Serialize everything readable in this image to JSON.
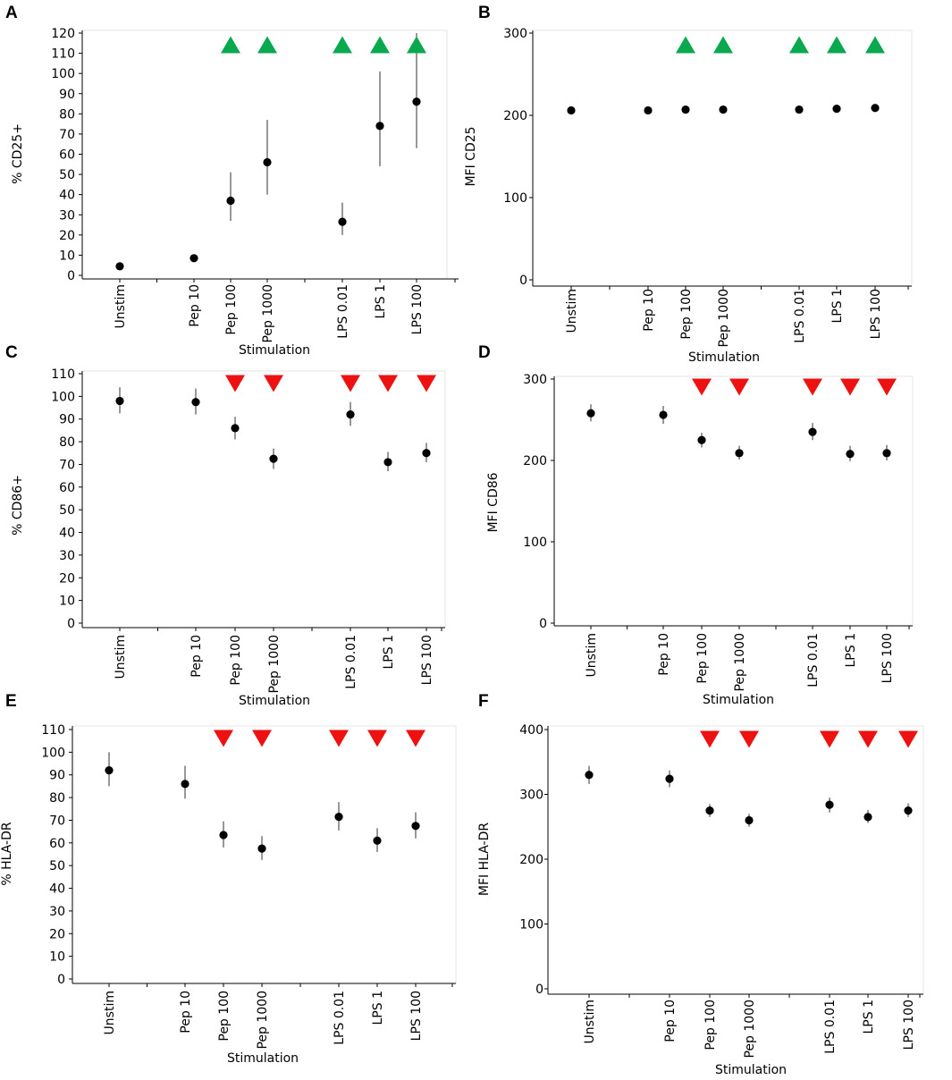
{
  "chart_data": [
    {
      "panel": "A",
      "type": "scatter",
      "categories": [
        "Unstim",
        "Pep 10",
        "Pep 100",
        "Pep 1000",
        "LPS 0.01",
        "LPS 1",
        "LPS 100"
      ],
      "values": [
        4.5,
        8.5,
        37,
        56,
        26.5,
        74,
        86
      ],
      "error_low": [
        4.5,
        7,
        27,
        40,
        20,
        54,
        63
      ],
      "error_high": [
        4.5,
        10,
        51,
        77,
        36,
        101,
        120
      ],
      "markers": [
        null,
        null,
        "up",
        "up",
        "up",
        "up",
        "up"
      ],
      "marker_colors": {
        "up": "#0aa84f",
        "down": "#ee1111"
      },
      "ylim": [
        0,
        120
      ],
      "yticks": [
        0,
        10,
        20,
        30,
        40,
        50,
        60,
        70,
        80,
        90,
        100,
        110,
        120
      ],
      "xlabel": "Stimulation",
      "ylabel": "% CD25+"
    },
    {
      "panel": "B",
      "type": "scatter",
      "categories": [
        "Unstim",
        "Pep 10",
        "Pep 100",
        "Pep 1000",
        "LPS 0.01",
        "LPS 1",
        "LPS 100"
      ],
      "values": [
        206,
        206,
        207,
        207,
        207,
        208,
        209
      ],
      "error_low": [
        206,
        206,
        207,
        207,
        207,
        208,
        209
      ],
      "error_high": [
        206,
        206,
        207,
        207,
        207,
        208,
        209
      ],
      "markers": [
        null,
        null,
        "up",
        "up",
        "up",
        "up",
        "up"
      ],
      "ylim": [
        0,
        300
      ],
      "yticks": [
        0,
        100,
        200,
        300
      ],
      "xlabel": "Stimulation",
      "ylabel": "MFI CD25"
    },
    {
      "panel": "C",
      "type": "scatter",
      "categories": [
        "Unstim",
        "Pep 10",
        "Pep 100",
        "Pep 1000",
        "LPS 0.01",
        "LPS 1",
        "LPS 100"
      ],
      "values": [
        98,
        97.5,
        86,
        72.5,
        92,
        71,
        75
      ],
      "error_low": [
        92.5,
        92,
        81,
        68,
        87,
        67,
        71
      ],
      "error_high": [
        104,
        103.5,
        91,
        77,
        97.5,
        75.5,
        79.5
      ],
      "markers": [
        null,
        null,
        "down",
        "down",
        "down",
        "down",
        "down"
      ],
      "ylim": [
        0,
        110
      ],
      "yticks": [
        0,
        10,
        20,
        30,
        40,
        50,
        60,
        70,
        80,
        90,
        100,
        110
      ],
      "xlabel": "Stimulation",
      "ylabel": "% CD86+"
    },
    {
      "panel": "D",
      "type": "scatter",
      "categories": [
        "Unstim",
        "Pep 10",
        "Pep 100",
        "Pep 1000",
        "LPS 0.01",
        "LPS 1",
        "LPS 100"
      ],
      "values": [
        258,
        256,
        225,
        209,
        235,
        208,
        209
      ],
      "error_low": [
        248,
        245,
        216,
        201,
        225,
        199,
        200
      ],
      "error_high": [
        269,
        267,
        234,
        218,
        246,
        218,
        219
      ],
      "markers": [
        null,
        null,
        "down",
        "down",
        "down",
        "down",
        "down"
      ],
      "ylim": [
        0,
        300
      ],
      "yticks": [
        0,
        100,
        200,
        300
      ],
      "xlabel": "Stimulation",
      "ylabel": "MFI CD86"
    },
    {
      "panel": "E",
      "type": "scatter",
      "categories": [
        "Unstim",
        "Pep 10",
        "Pep 100",
        "Pep 1000",
        "LPS 0.01",
        "LPS 1",
        "LPS 100"
      ],
      "values": [
        92,
        86,
        63.5,
        57.5,
        71.5,
        61,
        67.5
      ],
      "error_low": [
        85,
        79.5,
        58,
        52.5,
        65.5,
        56,
        62
      ],
      "error_high": [
        100,
        94,
        69.5,
        63,
        78,
        66.5,
        73.5
      ],
      "markers": [
        null,
        null,
        "down",
        "down",
        "down",
        "down",
        "down"
      ],
      "ylim": [
        0,
        110
      ],
      "yticks": [
        0,
        10,
        20,
        30,
        40,
        50,
        60,
        70,
        80,
        90,
        100,
        110
      ],
      "xlabel": "Stimulation",
      "ylabel": "% HLA-DR"
    },
    {
      "panel": "F",
      "type": "scatter",
      "categories": [
        "Unstim",
        "Pep 10",
        "Pep 100",
        "Pep 1000",
        "LPS 0.01",
        "LPS 1",
        "LPS 100"
      ],
      "values": [
        330,
        324,
        275,
        260,
        284,
        265,
        275
      ],
      "error_low": [
        316,
        311,
        265,
        250,
        272,
        256,
        265
      ],
      "error_high": [
        344,
        337,
        285,
        270,
        295,
        276,
        286
      ],
      "markers": [
        null,
        null,
        "down",
        "down",
        "down",
        "down",
        "down"
      ],
      "ylim": [
        0,
        400
      ],
      "yticks": [
        0,
        100,
        200,
        300,
        400
      ],
      "xlabel": "Stimulation",
      "ylabel": "MFI HLA-DR"
    }
  ]
}
